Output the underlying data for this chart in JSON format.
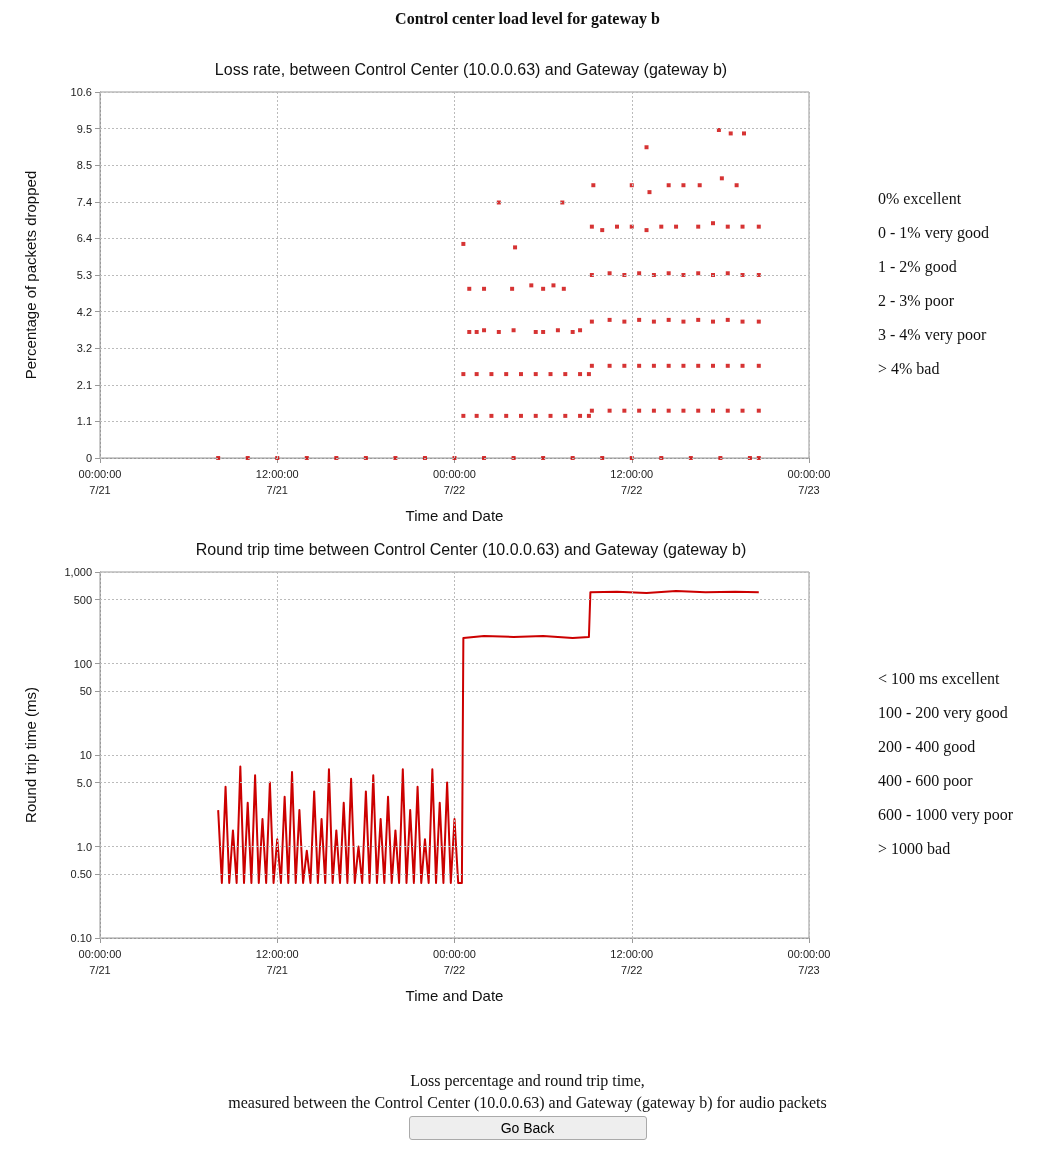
{
  "chart_data": [
    {
      "type": "other",
      "title": "Control center load level for gateway b"
    },
    {
      "type": "scatter",
      "title": "Loss rate, between Control Center (10.0.0.63) and Gateway (gateway b)",
      "xlabel": "Time and Date",
      "ylabel": "Percentage of packets dropped",
      "color": "#cc0000",
      "marker": "square",
      "grid": true,
      "x": [
        "--07-21T08:00",
        "--07-21T10:00",
        "--07-21T12:00",
        "--07-21T14:00",
        "--07-21T16:00",
        "--07-21T18:00",
        "--07-21T20:00",
        "--07-21T22:00",
        "--07-22T00:00",
        "--07-22T02:00",
        "--07-22T04:00",
        "--07-22T06:00",
        "--07-22T08:00",
        "--07-22T10:00",
        "--07-22T12:00",
        "--07-22T14:00",
        "--07-22T16:00",
        "--07-22T18:00",
        "--07-22T20:00",
        "--07-22T20:36",
        "--07-22T00:36",
        "--07-22T01:30",
        "--07-22T02:30",
        "--07-22T03:30",
        "--07-22T04:30",
        "--07-22T05:30",
        "--07-22T06:30",
        "--07-22T07:30",
        "--07-22T08:30",
        "--07-22T09:06",
        "--07-22T09:18",
        "--07-22T10:30",
        "--07-22T11:30",
        "--07-22T12:30",
        "--07-22T13:30",
        "--07-22T14:30",
        "--07-22T15:30",
        "--07-22T16:30",
        "--07-22T17:30",
        "--07-22T18:30",
        "--07-22T19:30",
        "--07-22T20:36",
        "--07-22T00:36",
        "--07-22T01:30",
        "--07-22T02:30",
        "--07-22T03:30",
        "--07-22T04:30",
        "--07-22T05:30",
        "--07-22T06:30",
        "--07-22T07:30",
        "--07-22T08:30",
        "--07-22T09:06",
        "--07-22T09:18",
        "--07-22T10:30",
        "--07-22T11:30",
        "--07-22T12:30",
        "--07-22T13:30",
        "--07-22T14:30",
        "--07-22T15:30",
        "--07-22T16:30",
        "--07-22T17:30",
        "--07-22T18:30",
        "--07-22T19:30",
        "--07-22T20:36",
        "--07-22T01:00",
        "--07-22T01:30",
        "--07-22T02:00",
        "--07-22T03:00",
        "--07-22T04:00",
        "--07-22T05:30",
        "--07-22T06:00",
        "--07-22T07:00",
        "--07-22T08:00",
        "--07-22T08:30",
        "--07-22T09:18",
        "--07-22T10:30",
        "--07-22T11:30",
        "--07-22T12:30",
        "--07-22T13:30",
        "--07-22T14:30",
        "--07-22T15:30",
        "--07-22T16:30",
        "--07-22T17:30",
        "--07-22T18:30",
        "--07-22T19:30",
        "--07-22T20:36",
        "--07-22T01:00",
        "--07-22T02:00",
        "--07-22T03:54",
        "--07-22T05:12",
        "--07-22T06:00",
        "--07-22T06:42",
        "--07-22T07:24",
        "--07-22T09:18",
        "--07-22T10:30",
        "--07-22T11:30",
        "--07-22T12:30",
        "--07-22T13:30",
        "--07-22T14:30",
        "--07-22T15:30",
        "--07-22T16:30",
        "--07-22T17:30",
        "--07-22T18:30",
        "--07-22T19:30",
        "--07-22T20:36",
        "--07-22T09:18",
        "--07-22T10:00",
        "--07-22T11:00",
        "--07-22T12:00",
        "--07-22T13:00",
        "--07-22T14:00",
        "--07-22T15:00",
        "--07-22T16:30",
        "--07-22T17:30",
        "--07-22T18:30",
        "--07-22T19:30",
        "--07-22T20:36",
        "--07-22T00:36",
        "--07-22T03:00",
        "--07-22T04:06",
        "--07-22T07:18",
        "--07-22T09:24",
        "--07-22T12:00",
        "--07-22T13:00",
        "--07-22T13:12",
        "--07-22T14:30",
        "--07-22T15:30",
        "--07-22T16:36",
        "--07-22T17:54",
        "--07-22T18:42",
        "--07-22T19:36",
        "--07-22T19:06",
        "--07-22T18:06"
      ],
      "values": [
        0,
        0,
        0,
        0,
        0,
        0,
        0,
        0,
        0,
        0,
        0,
        0,
        0,
        0,
        0,
        0,
        0,
        0,
        0,
        0,
        1.22,
        1.22,
        1.22,
        1.22,
        1.22,
        1.22,
        1.22,
        1.22,
        1.22,
        1.22,
        1.37,
        1.37,
        1.37,
        1.37,
        1.37,
        1.37,
        1.37,
        1.37,
        1.37,
        1.37,
        1.37,
        1.37,
        2.43,
        2.43,
        2.43,
        2.43,
        2.43,
        2.43,
        2.43,
        2.43,
        2.43,
        2.43,
        2.67,
        2.67,
        2.67,
        2.67,
        2.67,
        2.67,
        2.67,
        2.67,
        2.67,
        2.67,
        2.67,
        2.67,
        3.65,
        3.65,
        3.7,
        3.65,
        3.7,
        3.65,
        3.65,
        3.7,
        3.65,
        3.7,
        3.95,
        4.0,
        3.95,
        4.0,
        3.95,
        4.0,
        3.95,
        4.0,
        3.95,
        4.0,
        3.95,
        3.95,
        4.9,
        4.9,
        4.9,
        5.0,
        4.9,
        5.0,
        4.9,
        5.3,
        5.35,
        5.3,
        5.35,
        5.3,
        5.35,
        5.3,
        5.35,
        5.3,
        5.35,
        5.3,
        5.3,
        6.7,
        6.6,
        6.7,
        6.7,
        6.6,
        6.7,
        6.7,
        6.7,
        6.8,
        6.7,
        6.7,
        6.7,
        6.2,
        7.4,
        6.1,
        7.4,
        7.9,
        7.9,
        9.0,
        7.7,
        7.9,
        7.9,
        7.9,
        9.5,
        9.4,
        9.4,
        7.9,
        8.1
      ],
      "xlim": [
        "--07-21T00:00",
        "--07-23T00:00"
      ],
      "xticks": [
        {
          "value": "--07-21T00:00",
          "label": "00:00:00\n7/21"
        },
        {
          "value": "--07-21T12:00",
          "label": "12:00:00\n7/21"
        },
        {
          "value": "--07-22T00:00",
          "label": "00:00:00\n7/22"
        },
        {
          "value": "--07-22T12:00",
          "label": "12:00:00\n7/22"
        },
        {
          "value": "--07-23T00:00",
          "label": "00:00:00\n7/23"
        }
      ],
      "ylim": [
        0,
        10.6
      ],
      "yticks": [
        0,
        {
          "value": 1.06,
          "label": "1.1"
        },
        {
          "value": 2.12,
          "label": "2.1"
        },
        {
          "value": 3.18,
          "label": "3.2"
        },
        {
          "value": 4.24,
          "label": "4.2"
        },
        5.3,
        {
          "value": 6.36,
          "label": "6.4"
        },
        {
          "value": 7.42,
          "label": "7.4"
        },
        {
          "value": 8.48,
          "label": "8.5"
        },
        {
          "value": 9.54,
          "label": "9.5"
        },
        10.6
      ],
      "annotations": [
        "0% excellent",
        "0 - 1% very good",
        "1 - 2% good",
        "2 - 3% poor",
        "3 - 4% very poor",
        "> 4% bad"
      ]
    },
    {
      "type": "line",
      "title": "Round trip time between Control Center (10.0.0.63) and Gateway (gateway b)",
      "xlabel": "Time and Date",
      "ylabel": "Round trip time (ms)",
      "color": "#cc0000",
      "marker": "none",
      "line_style": "solid",
      "grid": true,
      "log": "y",
      "x": [
        "--07-21T08:00",
        "--07-21T08:15",
        "--07-21T08:30",
        "--07-21T08:45",
        "--07-21T09:00",
        "--07-21T09:15",
        "--07-21T09:30",
        "--07-21T09:45",
        "--07-21T10:00",
        "--07-21T10:15",
        "--07-21T10:30",
        "--07-21T10:45",
        "--07-21T11:00",
        "--07-21T11:15",
        "--07-21T11:30",
        "--07-21T11:45",
        "--07-21T12:00",
        "--07-21T12:15",
        "--07-21T12:30",
        "--07-21T12:45",
        "--07-21T13:00",
        "--07-21T13:15",
        "--07-21T13:30",
        "--07-21T13:45",
        "--07-21T14:00",
        "--07-21T14:15",
        "--07-21T14:30",
        "--07-21T14:45",
        "--07-21T15:00",
        "--07-21T15:15",
        "--07-21T15:30",
        "--07-21T15:45",
        "--07-21T16:00",
        "--07-21T16:15",
        "--07-21T16:30",
        "--07-21T16:45",
        "--07-21T17:00",
        "--07-21T17:15",
        "--07-21T17:30",
        "--07-21T17:45",
        "--07-21T18:00",
        "--07-21T18:15",
        "--07-21T18:30",
        "--07-21T18:45",
        "--07-21T19:00",
        "--07-21T19:15",
        "--07-21T19:30",
        "--07-21T19:45",
        "--07-21T20:00",
        "--07-21T20:15",
        "--07-21T20:30",
        "--07-21T20:45",
        "--07-21T21:00",
        "--07-21T21:15",
        "--07-21T21:30",
        "--07-21T21:45",
        "--07-21T22:00",
        "--07-21T22:15",
        "--07-21T22:30",
        "--07-21T22:45",
        "--07-21T23:00",
        "--07-21T23:15",
        "--07-21T23:30",
        "--07-21T23:45",
        "--07-22T00:00",
        "--07-22T00:15",
        "--07-22T00:30",
        "--07-22T00:36",
        "--07-22T02:00",
        "--07-22T04:00",
        "--07-22T06:00",
        "--07-22T08:00",
        "--07-22T09:06",
        "--07-22T09:12",
        "--07-22T11:00",
        "--07-22T13:00",
        "--07-22T15:00",
        "--07-22T17:00",
        "--07-22T19:00",
        "--07-22T20:36"
      ],
      "values": [
        2.5,
        0.4,
        4.5,
        0.4,
        1.5,
        0.4,
        7.5,
        0.4,
        3.0,
        0.4,
        6.0,
        0.4,
        2.0,
        0.4,
        5.0,
        0.4,
        1.2,
        0.4,
        3.5,
        0.4,
        6.5,
        0.4,
        2.5,
        0.4,
        0.9,
        0.4,
        4.0,
        0.4,
        2.0,
        0.4,
        7.0,
        0.4,
        1.5,
        0.4,
        3.0,
        0.4,
        5.5,
        0.4,
        1.0,
        0.4,
        4.0,
        0.4,
        6.0,
        0.4,
        2.0,
        0.4,
        3.5,
        0.4,
        1.5,
        0.4,
        7.0,
        0.4,
        2.5,
        0.4,
        4.5,
        0.4,
        1.2,
        0.4,
        7.0,
        0.4,
        3.0,
        0.4,
        5.0,
        0.4,
        2.0,
        0.4,
        0.4,
        190,
        200,
        195,
        200,
        190,
        195,
        600,
        610,
        590,
        620,
        600,
        610,
        600
      ],
      "xlim": [
        "--07-21T00:00",
        "--07-23T00:00"
      ],
      "xticks": [
        {
          "value": "--07-21T00:00",
          "label": "00:00:00\n7/21"
        },
        {
          "value": "--07-21T12:00",
          "label": "12:00:00\n7/21"
        },
        {
          "value": "--07-22T00:00",
          "label": "00:00:00\n7/22"
        },
        {
          "value": "--07-22T12:00",
          "label": "12:00:00\n7/22"
        },
        {
          "value": "--07-23T00:00",
          "label": "00:00:00\n7/23"
        }
      ],
      "ylim": [
        0.1,
        1000
      ],
      "yticks": [
        {
          "value": 0.1,
          "label": "0.10"
        },
        {
          "value": 0.5,
          "label": "0.50"
        },
        {
          "value": 1,
          "label": "1.0"
        },
        {
          "value": 5,
          "label": "5.0"
        },
        10,
        50,
        100,
        500,
        {
          "value": 1000,
          "label": "1,000"
        }
      ],
      "annotations": [
        "< 100 ms excellent",
        "100 - 200 very good",
        "200 - 400 good",
        "400 - 600 poor",
        "600 - 1000 very poor",
        "> 1000 bad"
      ]
    },
    {
      "type": "other",
      "annotations": [
        "Loss percentage and round trip time,",
        "measured between the Control Center (10.0.0.63) and Gateway (gateway b) for audio packets",
        "Go Back"
      ]
    }
  ]
}
